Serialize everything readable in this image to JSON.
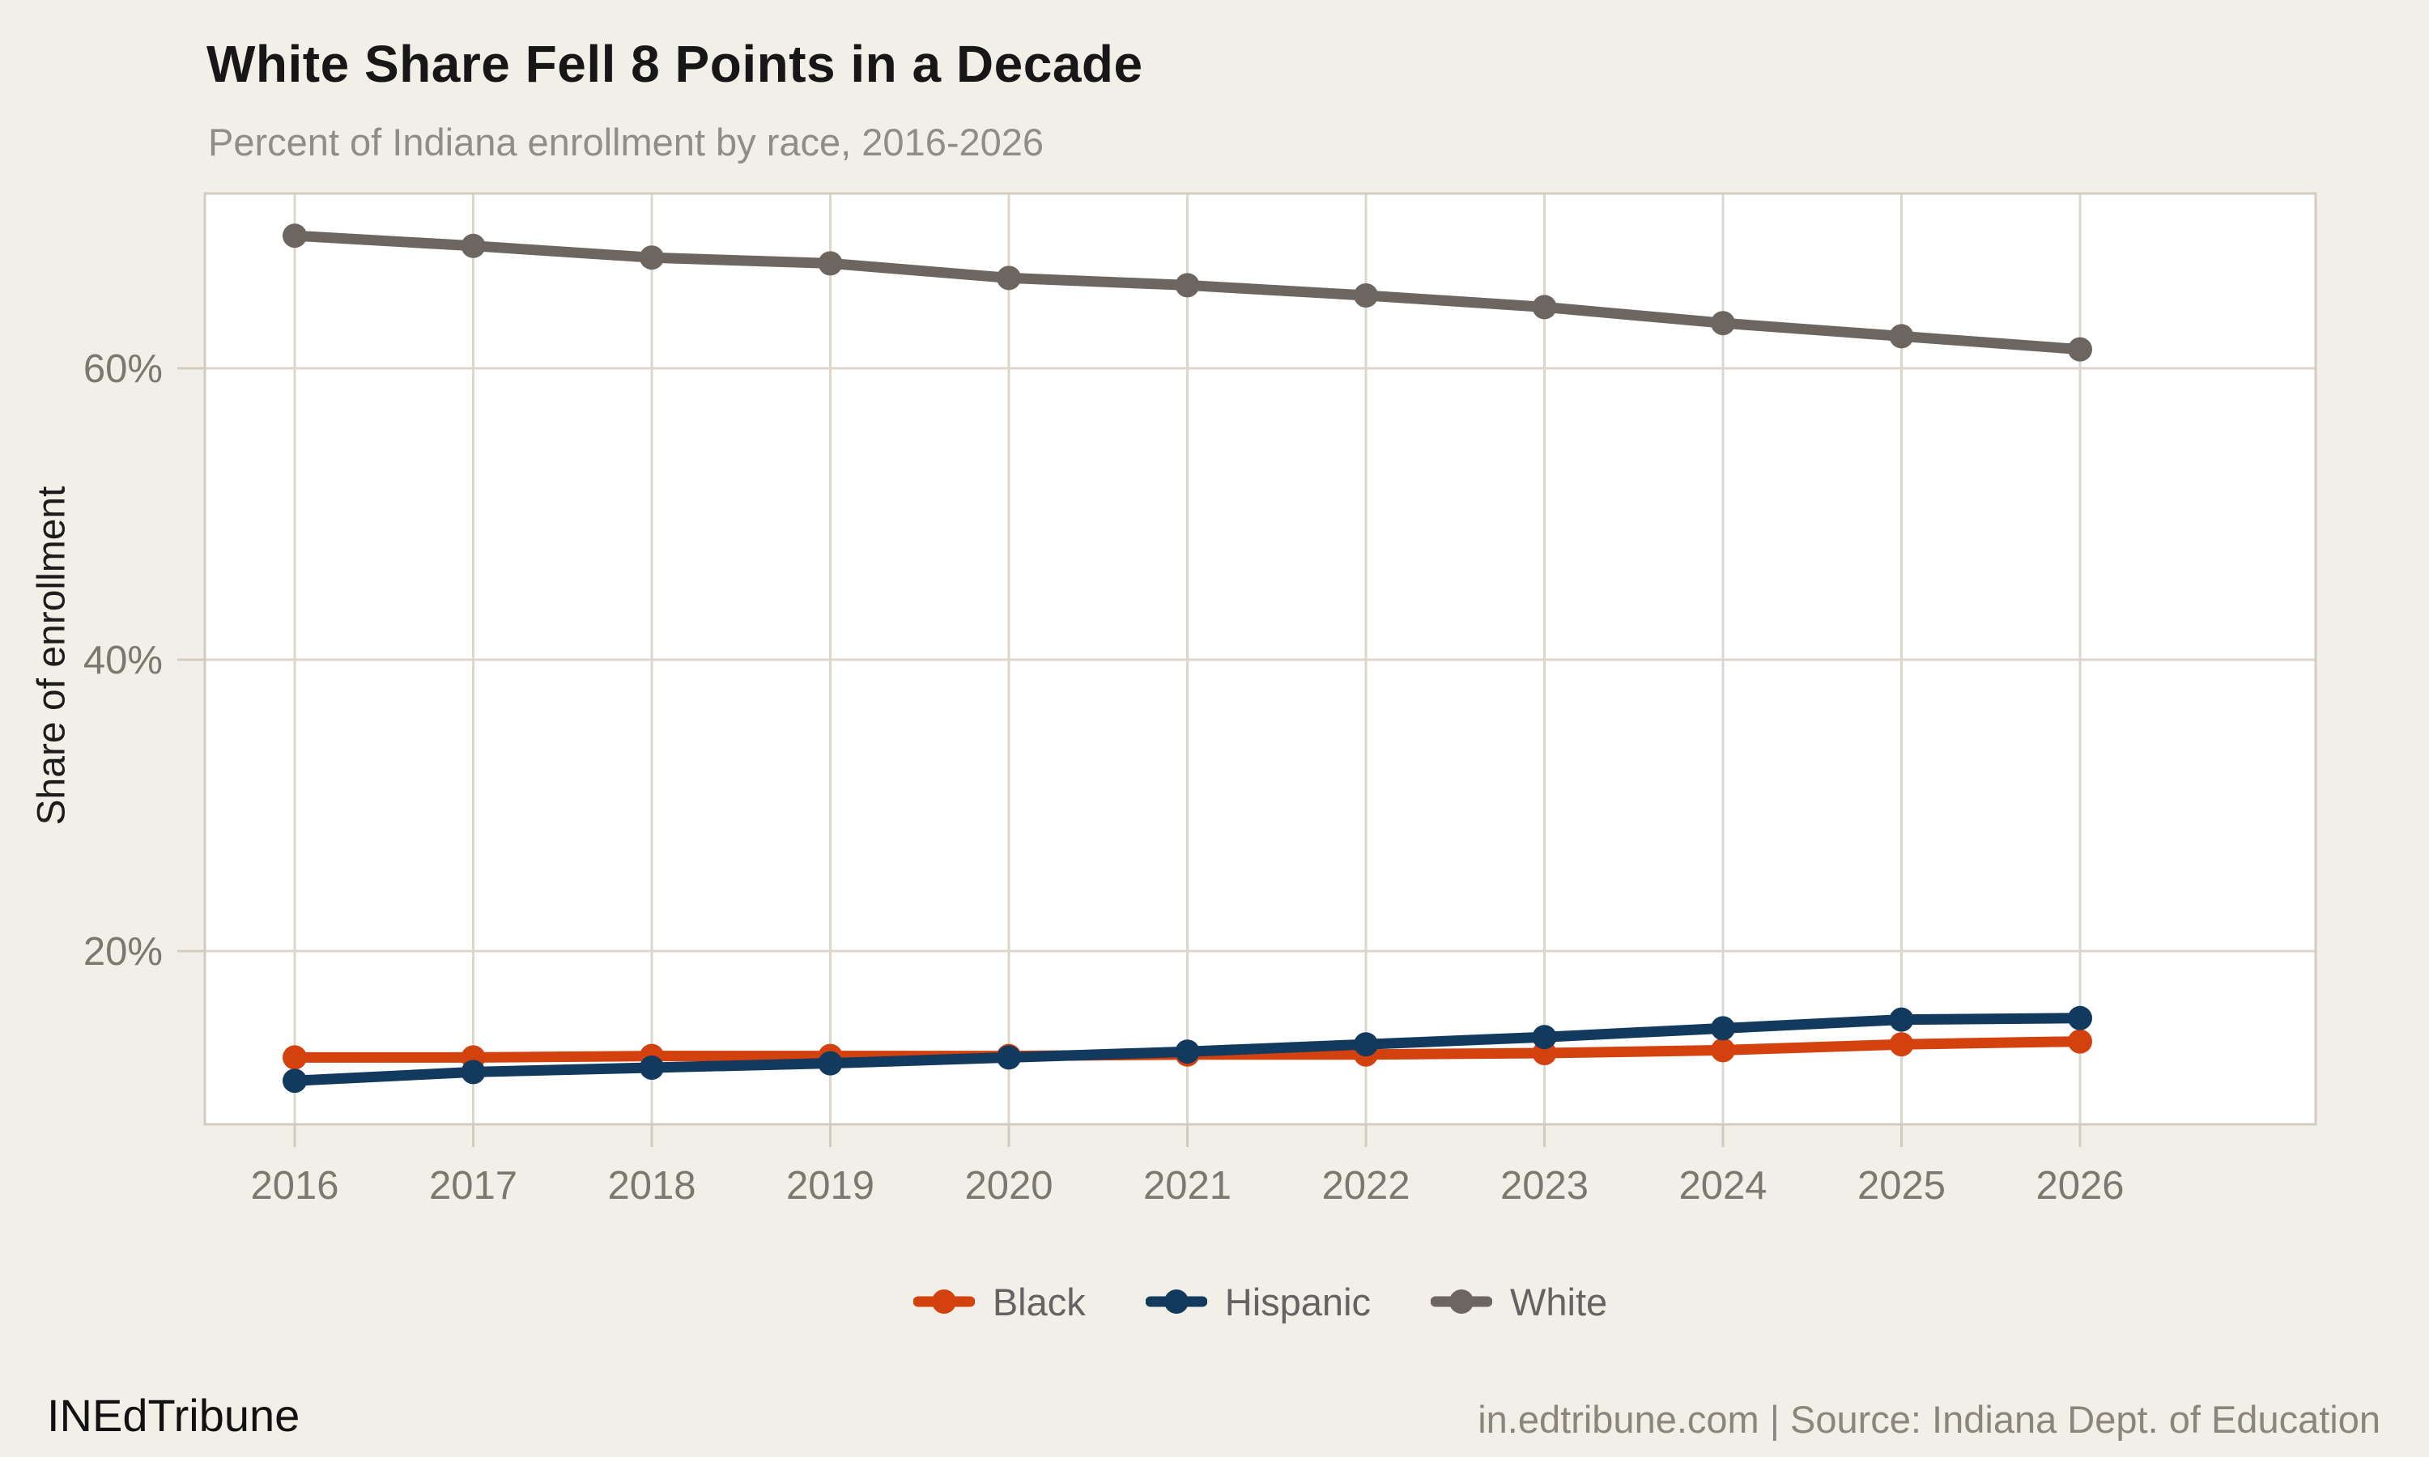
{
  "header": {
    "title": "White Share Fell 8 Points in a Decade",
    "subtitle": "Percent of Indiana enrollment by race, 2016-2026"
  },
  "y_axis_title": "Share of enrollment",
  "footer": {
    "brand": "INEdTribune",
    "attribution": "in.edtribune.com | Source: Indiana Dept. of Education"
  },
  "colors": {
    "background": "#f2efe8",
    "panel_fill": "#ffffff",
    "gridline": "#dcd6cc",
    "panel_border": "#d2ccc0",
    "tick_label": "#7d786f",
    "title_text": "#171717",
    "subtitle_text": "#8f8d89",
    "legend_text": "#636363",
    "black_series": "#d2410e",
    "hispanic_series": "#12395e",
    "white_series": "#6d6660"
  },
  "chart_data": {
    "type": "line",
    "title": "White Share Fell 8 Points in a Decade",
    "subtitle": "Percent of Indiana enrollment by race, 2016-2026",
    "xlabel": "",
    "ylabel": "Share of enrollment",
    "x": [
      "2016",
      "2017",
      "2018",
      "2019",
      "2020",
      "2021",
      "2022",
      "2023",
      "2024",
      "2025",
      "2026"
    ],
    "y_ticks": [
      {
        "label": "20%",
        "value": 20
      },
      {
        "label": "40%",
        "value": 40
      },
      {
        "label": "60%",
        "value": 60
      }
    ],
    "ylim": [
      8.1,
      72
    ],
    "grid": true,
    "legend_position": "bottom",
    "series": [
      {
        "name": "Black",
        "color": "#d2410e",
        "values": [
          12.7,
          12.7,
          12.8,
          12.8,
          12.8,
          12.9,
          12.9,
          13.0,
          13.2,
          13.6,
          13.8
        ]
      },
      {
        "name": "Hispanic",
        "color": "#12395e",
        "values": [
          11.1,
          11.7,
          12.0,
          12.3,
          12.7,
          13.1,
          13.6,
          14.1,
          14.7,
          15.3,
          15.4
        ]
      },
      {
        "name": "White",
        "color": "#6d6660",
        "values": [
          69.1,
          68.4,
          67.6,
          67.2,
          66.2,
          65.7,
          65.0,
          64.2,
          63.1,
          62.2,
          61.3
        ]
      }
    ]
  }
}
